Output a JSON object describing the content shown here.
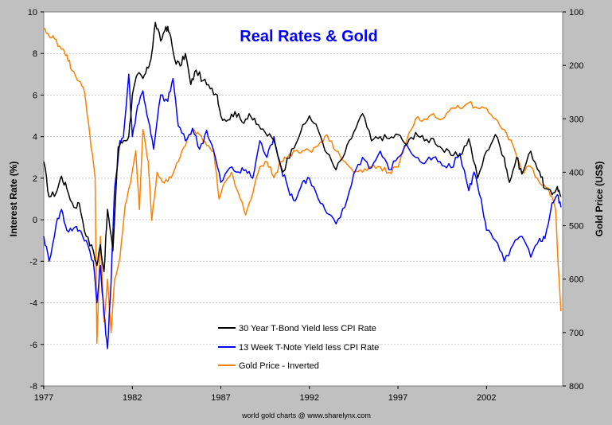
{
  "chart_data": {
    "type": "line",
    "title": "Real Rates & Gold",
    "title_color": "#0000ff",
    "ylabel": "Interest Rate (%)",
    "y2label": "Gold Price (US$)",
    "credit": "world gold charts @ www.sharelynx.com",
    "xlim": [
      1977,
      2006.3
    ],
    "ylim": [
      -8,
      10
    ],
    "y2lim": [
      100,
      800
    ],
    "y2_inverted": true,
    "x_ticks": [
      "1977",
      "1982",
      "1987",
      "1992",
      "1997",
      "2002"
    ],
    "y_ticks": [
      "10",
      "8",
      "6",
      "4",
      "2",
      "0",
      "-2",
      "-4",
      "-6",
      "-8"
    ],
    "y2_ticks": [
      "100",
      "200",
      "300",
      "400",
      "500",
      "600",
      "700",
      "800"
    ],
    "grid": true,
    "legend_position": "lower-center",
    "series": [
      {
        "name": "30 Year T-Bond Yield less CPI Rate",
        "color": "#000000",
        "axis": "left",
        "x": [
          1977.0,
          1977.3,
          1977.7,
          1978.0,
          1978.3,
          1978.7,
          1979.0,
          1979.4,
          1979.8,
          1980.0,
          1980.2,
          1980.4,
          1980.6,
          1980.9,
          1981.2,
          1981.5,
          1981.8,
          1982.0,
          1982.3,
          1982.6,
          1982.9,
          1983.1,
          1983.3,
          1983.6,
          1983.9,
          1984.1,
          1984.4,
          1984.7,
          1985.0,
          1985.3,
          1985.6,
          1986.0,
          1986.4,
          1986.8,
          1987.0,
          1987.4,
          1987.8,
          1988.2,
          1988.6,
          1989.0,
          1989.5,
          1990.0,
          1990.5,
          1991.0,
          1991.5,
          1992.0,
          1992.5,
          1993.0,
          1993.5,
          1994.0,
          1994.5,
          1995.0,
          1995.5,
          1996.0,
          1996.5,
          1997.0,
          1997.5,
          1998.0,
          1998.5,
          1999.0,
          1999.5,
          2000.0,
          2000.5,
          2001.0,
          2001.5,
          2002.0,
          2002.5,
          2003.0,
          2003.3,
          2003.7,
          2004.0,
          2004.5,
          2005.0,
          2005.3,
          2005.7,
          2006.0,
          2006.2
        ],
        "y": [
          2.8,
          1.1,
          1.3,
          2.1,
          1.5,
          0.6,
          0.8,
          -0.8,
          -1.5,
          -2.2,
          -1.2,
          -2.5,
          0.5,
          -1.5,
          3.5,
          3.8,
          4.0,
          6.0,
          7.0,
          6.8,
          7.3,
          8.0,
          9.5,
          8.6,
          9.3,
          9.0,
          7.7,
          7.4,
          8.0,
          6.5,
          7.2,
          6.7,
          6.3,
          6.0,
          5.0,
          4.8,
          5.2,
          4.7,
          5.1,
          4.6,
          4.2,
          3.8,
          2.3,
          3.4,
          4.2,
          5.0,
          4.3,
          3.2,
          2.4,
          3.2,
          4.2,
          5.1,
          3.8,
          4.0,
          3.9,
          4.1,
          3.6,
          4.2,
          3.8,
          3.9,
          3.4,
          3.1,
          3.1,
          3.9,
          2.0,
          3.3,
          4.1,
          3.0,
          1.8,
          3.0,
          2.2,
          3.3,
          2.3,
          1.5,
          1.2,
          1.6,
          1.1
        ]
      },
      {
        "name": "13 Week T-Note Yield less CPI Rate",
        "color": "#0000ff",
        "axis": "left",
        "x": [
          1977.0,
          1977.3,
          1977.7,
          1978.0,
          1978.3,
          1978.7,
          1979.0,
          1979.4,
          1979.8,
          1980.0,
          1980.2,
          1980.4,
          1980.6,
          1980.8,
          1981.0,
          1981.3,
          1981.5,
          1981.8,
          1982.0,
          1982.3,
          1982.6,
          1982.9,
          1983.2,
          1983.6,
          1984.0,
          1984.3,
          1984.6,
          1985.0,
          1985.4,
          1985.8,
          1986.2,
          1986.6,
          1987.0,
          1987.5,
          1988.0,
          1988.4,
          1988.8,
          1989.2,
          1989.6,
          1990.0,
          1990.4,
          1990.8,
          1991.2,
          1991.6,
          1992.0,
          1992.5,
          1993.0,
          1993.5,
          1994.0,
          1994.5,
          1995.0,
          1995.5,
          1996.0,
          1996.5,
          1997.0,
          1997.5,
          1998.0,
          1998.5,
          1999.0,
          1999.5,
          2000.0,
          2000.5,
          2001.0,
          2001.3,
          2001.7,
          2002.0,
          2002.5,
          2003.0,
          2003.5,
          2004.0,
          2004.5,
          2005.0,
          2005.3,
          2005.7,
          2006.0,
          2006.2
        ],
        "y": [
          -0.8,
          -2.0,
          -0.2,
          0.5,
          -0.5,
          -0.4,
          -0.5,
          -1.0,
          -2.0,
          -4.0,
          -2.2,
          -4.5,
          -6.2,
          -3.0,
          1.5,
          3.8,
          4.0,
          7.0,
          4.0,
          5.5,
          6.2,
          4.8,
          3.4,
          6.0,
          5.7,
          6.8,
          4.5,
          3.8,
          4.4,
          3.4,
          4.3,
          3.3,
          1.8,
          2.5,
          2.3,
          2.4,
          2.0,
          3.8,
          3.0,
          4.0,
          2.5,
          1.5,
          0.9,
          1.8,
          2.0,
          1.0,
          0.3,
          -0.2,
          0.6,
          2.2,
          3.0,
          2.5,
          3.3,
          2.4,
          3.0,
          3.6,
          3.0,
          2.7,
          3.0,
          2.6,
          2.5,
          3.2,
          1.4,
          2.3,
          1.0,
          -0.5,
          -1.0,
          -2.0,
          -1.2,
          -0.8,
          -1.8,
          -0.9,
          -0.9,
          0.8,
          1.2,
          0.6
        ]
      },
      {
        "name": "Gold Price - Inverted",
        "color": "#ff7f00",
        "axis": "right",
        "x": [
          1977.0,
          1977.3,
          1977.6,
          1978.0,
          1978.3,
          1978.6,
          1979.0,
          1979.3,
          1979.6,
          1979.9,
          1980.0,
          1980.2,
          1980.4,
          1980.6,
          1980.8,
          1981.0,
          1981.3,
          1981.6,
          1981.9,
          1982.2,
          1982.4,
          1982.6,
          1982.9,
          1983.1,
          1983.4,
          1983.8,
          1984.2,
          1984.6,
          1985.0,
          1985.4,
          1985.8,
          1986.2,
          1986.6,
          1986.9,
          1987.2,
          1987.6,
          1988.0,
          1988.4,
          1988.8,
          1989.2,
          1989.6,
          1990.0,
          1990.4,
          1990.8,
          1991.2,
          1991.6,
          1992.0,
          1992.5,
          1993.0,
          1993.5,
          1994.0,
          1994.5,
          1995.0,
          1995.5,
          1996.0,
          1996.5,
          1997.0,
          1997.5,
          1998.0,
          1998.5,
          1999.0,
          1999.5,
          2000.0,
          2000.5,
          2001.0,
          2001.5,
          2002.0,
          2002.5,
          2003.0,
          2003.5,
          2004.0,
          2004.5,
          2005.0,
          2005.5,
          2005.9,
          2006.0,
          2006.2
        ],
        "y": [
          130,
          145,
          150,
          170,
          180,
          210,
          230,
          250,
          330,
          410,
          720,
          520,
          680,
          600,
          700,
          600,
          560,
          460,
          420,
          360,
          470,
          320,
          380,
          490,
          400,
          420,
          410,
          380,
          350,
          320,
          330,
          350,
          360,
          450,
          420,
          400,
          440,
          480,
          440,
          390,
          380,
          410,
          380,
          370,
          360,
          360,
          360,
          350,
          330,
          360,
          380,
          400,
          400,
          390,
          390,
          400,
          390,
          340,
          300,
          300,
          290,
          300,
          280,
          280,
          270,
          280,
          280,
          300,
          320,
          350,
          400,
          390,
          420,
          430,
          470,
          540,
          660
        ]
      }
    ]
  }
}
